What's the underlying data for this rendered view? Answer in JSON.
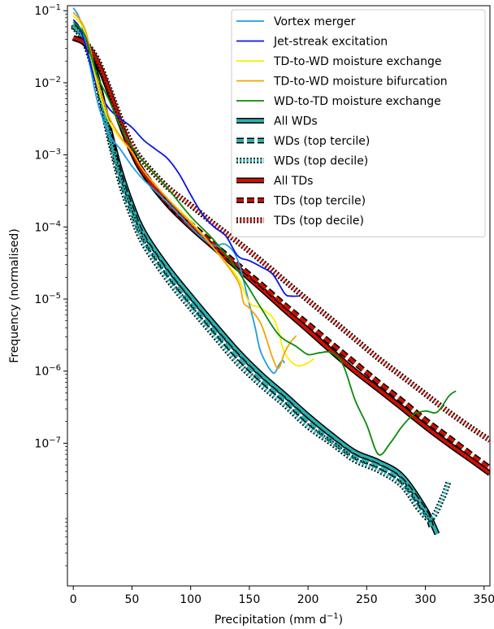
{
  "chart_data": {
    "type": "line",
    "xlabel_main": "Precipitation (mm d",
    "xlabel_sup": "−1",
    "xlabel_end": ")",
    "ylabel": "Frequency (normalised)",
    "xlim": [
      -5,
      355
    ],
    "ylim_exponent": [
      -8.98,
      -0.93
    ],
    "yscale": "log",
    "legend_position": "top-right",
    "grid": false,
    "x_ticks": [
      0,
      50,
      100,
      150,
      200,
      250,
      300,
      350
    ],
    "y_ticks": [
      {
        "base": "10",
        "exp": "−1",
        "value": 0.1
      },
      {
        "base": "10",
        "exp": "−2",
        "value": 0.01
      },
      {
        "base": "10",
        "exp": "−3",
        "value": 0.001
      },
      {
        "base": "10",
        "exp": "−4",
        "value": 0.0001
      },
      {
        "base": "10",
        "exp": "−5",
        "value": 1e-05
      },
      {
        "base": "10",
        "exp": "−6",
        "value": 1e-06
      },
      {
        "base": "10",
        "exp": "−7",
        "value": 1e-07
      }
    ],
    "series": [
      {
        "name": "All WDs",
        "color": "#2ab0b0",
        "style": "bold-solid",
        "points": [
          [
            0,
            0.065
          ],
          [
            10,
            0.04
          ],
          [
            20,
            0.012
          ],
          [
            30,
            0.0025
          ],
          [
            40,
            0.0006
          ],
          [
            50,
            0.0002
          ],
          [
            60,
            8.5e-05
          ],
          [
            80,
            2.8e-05
          ],
          [
            100,
            1.1e-05
          ],
          [
            120,
            4.5e-06
          ],
          [
            140,
            1.9e-06
          ],
          [
            160,
            9e-07
          ],
          [
            180,
            4.7e-07
          ],
          [
            200,
            2.4e-07
          ],
          [
            220,
            1.3e-07
          ],
          [
            240,
            7.5e-08
          ],
          [
            260,
            5.5e-08
          ],
          [
            280,
            3.5e-08
          ],
          [
            300,
            1.2e-08
          ],
          [
            310,
            5.5e-09
          ]
        ]
      },
      {
        "name": "WDs (top tercile)",
        "color": "#2ab0b0",
        "style": "bold-dashed",
        "points": [
          [
            0,
            0.062
          ],
          [
            10,
            0.038
          ],
          [
            20,
            0.011
          ],
          [
            30,
            0.0022
          ],
          [
            40,
            0.0005
          ],
          [
            50,
            0.00017
          ],
          [
            60,
            7e-05
          ],
          [
            80,
            2.3e-05
          ],
          [
            100,
            9e-06
          ],
          [
            120,
            3.7e-06
          ],
          [
            140,
            1.6e-06
          ],
          [
            160,
            7.6e-07
          ],
          [
            180,
            4e-07
          ],
          [
            200,
            2e-07
          ],
          [
            220,
            1.1e-07
          ],
          [
            240,
            6.5e-08
          ],
          [
            260,
            4.8e-08
          ],
          [
            280,
            3e-08
          ],
          [
            300,
            1.1e-08
          ],
          [
            305,
            7e-09
          ]
        ]
      },
      {
        "name": "WDs (top decile)",
        "color": "#2ab0b0",
        "style": "bold-dotted",
        "points": [
          [
            0,
            0.06
          ],
          [
            10,
            0.035
          ],
          [
            20,
            0.01
          ],
          [
            30,
            0.0019
          ],
          [
            40,
            0.00042
          ],
          [
            50,
            0.00014
          ],
          [
            60,
            5.8e-05
          ],
          [
            80,
            1.9e-05
          ],
          [
            100,
            7.5e-06
          ],
          [
            120,
            3.1e-06
          ],
          [
            140,
            1.3e-06
          ],
          [
            160,
            6.4e-07
          ],
          [
            180,
            3.4e-07
          ],
          [
            200,
            1.7e-07
          ],
          [
            220,
            1e-07
          ],
          [
            240,
            5.8e-08
          ],
          [
            260,
            4.2e-08
          ],
          [
            280,
            2.6e-08
          ],
          [
            295,
            1.2e-08
          ],
          [
            305,
            9e-09
          ],
          [
            315,
            1.8e-08
          ],
          [
            320,
            3e-08
          ]
        ]
      },
      {
        "name": "All TDs",
        "color": "#cc1100",
        "style": "bold-solid",
        "points": [
          [
            0,
            0.042
          ],
          [
            10,
            0.035
          ],
          [
            20,
            0.02
          ],
          [
            30,
            0.008
          ],
          [
            40,
            0.0028
          ],
          [
            50,
            0.0011
          ],
          [
            60,
            0.00055
          ],
          [
            80,
            0.00021
          ],
          [
            100,
            0.0001
          ],
          [
            120,
            5.2e-05
          ],
          [
            140,
            2.7e-05
          ],
          [
            160,
            1.4e-05
          ],
          [
            180,
            7.1e-06
          ],
          [
            200,
            3.7e-06
          ],
          [
            220,
            1.9e-06
          ],
          [
            240,
            1e-06
          ],
          [
            260,
            5.6e-07
          ],
          [
            280,
            3.1e-07
          ],
          [
            300,
            1.7e-07
          ],
          [
            320,
            9.7e-08
          ],
          [
            340,
            5.7e-08
          ],
          [
            355,
            3.8e-08
          ]
        ]
      },
      {
        "name": "TDs (top tercile)",
        "color": "#cc1100",
        "style": "bold-dashed",
        "points": [
          [
            0,
            0.042
          ],
          [
            10,
            0.035
          ],
          [
            20,
            0.02
          ],
          [
            30,
            0.008
          ],
          [
            40,
            0.0028
          ],
          [
            50,
            0.0011
          ],
          [
            60,
            0.00056
          ],
          [
            80,
            0.00022
          ],
          [
            100,
            0.00011
          ],
          [
            120,
            5.7e-05
          ],
          [
            140,
            3e-05
          ],
          [
            160,
            1.6e-05
          ],
          [
            180,
            8.3e-06
          ],
          [
            200,
            4.5e-06
          ],
          [
            220,
            2.4e-06
          ],
          [
            240,
            1.3e-06
          ],
          [
            260,
            7e-07
          ],
          [
            280,
            3.9e-07
          ],
          [
            300,
            2.1e-07
          ],
          [
            320,
            1.2e-07
          ],
          [
            340,
            6.8e-08
          ],
          [
            355,
            4.5e-08
          ]
        ]
      },
      {
        "name": "TDs (top decile)",
        "color": "#cc1100",
        "style": "bold-dotted",
        "points": [
          [
            0,
            0.042
          ],
          [
            10,
            0.036
          ],
          [
            20,
            0.022
          ],
          [
            30,
            0.009
          ],
          [
            40,
            0.0033
          ],
          [
            50,
            0.0014
          ],
          [
            60,
            0.0008
          ],
          [
            80,
            0.00036
          ],
          [
            100,
            0.0002
          ],
          [
            120,
            0.00011
          ],
          [
            140,
            6.2e-05
          ],
          [
            160,
            3.4e-05
          ],
          [
            180,
            1.8e-05
          ],
          [
            200,
            9.6e-06
          ],
          [
            220,
            5.2e-06
          ],
          [
            240,
            2.8e-06
          ],
          [
            260,
            1.5e-06
          ],
          [
            280,
            8.5e-07
          ],
          [
            300,
            4.8e-07
          ],
          [
            320,
            2.7e-07
          ],
          [
            340,
            1.6e-07
          ],
          [
            355,
            1.1e-07
          ]
        ]
      },
      {
        "name": "Vortex merger",
        "color": "#1f9be8",
        "style": "thin",
        "points": [
          [
            0,
            0.11
          ],
          [
            5,
            0.08
          ],
          [
            10,
            0.04
          ],
          [
            20,
            0.006
          ],
          [
            30,
            0.002
          ],
          [
            40,
            0.0012
          ],
          [
            50,
            0.0007
          ],
          [
            60,
            0.00045
          ],
          [
            80,
            0.00022
          ],
          [
            100,
            0.0001
          ],
          [
            110,
            7e-05
          ],
          [
            120,
            5.5e-05
          ],
          [
            130,
            5.7e-05
          ],
          [
            140,
            3.5e-05
          ],
          [
            150,
            8.5e-06
          ],
          [
            155,
            4e-06
          ],
          [
            160,
            1.8e-06
          ],
          [
            170,
            9.5e-07
          ],
          [
            175,
            1.2e-06
          ],
          [
            178,
            1.4e-06
          ],
          [
            180,
            1.3e-06
          ]
        ]
      },
      {
        "name": "Jet-streak excitation",
        "color": "#0b15e6",
        "style": "thin",
        "points": [
          [
            0,
            0.075
          ],
          [
            5,
            0.06
          ],
          [
            10,
            0.035
          ],
          [
            20,
            0.009
          ],
          [
            30,
            0.0045
          ],
          [
            40,
            0.0032
          ],
          [
            50,
            0.0024
          ],
          [
            60,
            0.0016
          ],
          [
            70,
            0.0012
          ],
          [
            80,
            0.0009
          ],
          [
            90,
            0.00055
          ],
          [
            100,
            0.00028
          ],
          [
            110,
            0.00015
          ],
          [
            120,
            0.0001
          ],
          [
            130,
            7.5e-05
          ],
          [
            140,
            4e-05
          ],
          [
            150,
            3.4e-05
          ],
          [
            160,
            2.8e-05
          ],
          [
            170,
            2.2e-05
          ],
          [
            180,
            1.2e-05
          ],
          [
            185,
            1.1e-05
          ],
          [
            192,
            1.1e-05
          ]
        ]
      },
      {
        "name": "TD-to-WD moisture exchange",
        "color": "#f7ef00",
        "style": "thin",
        "points": [
          [
            0,
            0.085
          ],
          [
            10,
            0.05
          ],
          [
            20,
            0.01
          ],
          [
            30,
            0.003
          ],
          [
            40,
            0.0017
          ],
          [
            50,
            0.0011
          ],
          [
            60,
            0.0006
          ],
          [
            80,
            0.00025
          ],
          [
            100,
            0.00012
          ],
          [
            120,
            5e-05
          ],
          [
            140,
            2e-05
          ],
          [
            150,
            9e-06
          ],
          [
            160,
            7.5e-06
          ],
          [
            170,
            5.5e-06
          ],
          [
            175,
            3.5e-06
          ],
          [
            180,
            1.8e-06
          ],
          [
            190,
            1.2e-06
          ],
          [
            200,
            1.3e-06
          ],
          [
            205,
            1.5e-06
          ]
        ]
      },
      {
        "name": "TD-to-WD moisture bifurcation",
        "color": "#f5a300",
        "style": "thin",
        "points": [
          [
            0,
            0.095
          ],
          [
            10,
            0.055
          ],
          [
            20,
            0.012
          ],
          [
            30,
            0.0035
          ],
          [
            40,
            0.0018
          ],
          [
            50,
            0.0011
          ],
          [
            60,
            0.0006
          ],
          [
            80,
            0.00025
          ],
          [
            100,
            0.000115
          ],
          [
            120,
            5e-05
          ],
          [
            140,
            1.8e-05
          ],
          [
            145,
            9e-06
          ],
          [
            150,
            7.5e-06
          ],
          [
            160,
            4.5e-06
          ],
          [
            170,
            1.5e-06
          ],
          [
            175,
            1.1e-06
          ],
          [
            180,
            1.8e-06
          ],
          [
            185,
            2.5e-06
          ],
          [
            190,
            3.1e-06
          ]
        ]
      },
      {
        "name": "WD-to-TD moisture exchange",
        "color": "#0a8a0a",
        "style": "thin",
        "points": [
          [
            0,
            0.07
          ],
          [
            10,
            0.045
          ],
          [
            20,
            0.013
          ],
          [
            30,
            0.006
          ],
          [
            40,
            0.0025
          ],
          [
            50,
            0.0013
          ],
          [
            60,
            0.0008
          ],
          [
            80,
            0.00035
          ],
          [
            100,
            0.00014
          ],
          [
            120,
            6.5e-05
          ],
          [
            140,
            2.5e-05
          ],
          [
            160,
            7.5e-06
          ],
          [
            175,
            3.2e-06
          ],
          [
            190,
            2.2e-06
          ],
          [
            200,
            1.7e-06
          ],
          [
            210,
            1.8e-06
          ],
          [
            220,
            1.8e-06
          ],
          [
            230,
            1.2e-06
          ],
          [
            240,
            4e-07
          ],
          [
            250,
            1.8e-07
          ],
          [
            260,
            7e-08
          ],
          [
            270,
            1e-07
          ],
          [
            280,
            1.7e-07
          ],
          [
            290,
            2.5e-07
          ],
          [
            300,
            2.8e-07
          ],
          [
            310,
            2.7e-07
          ],
          [
            320,
            4.5e-07
          ],
          [
            326,
            5.3e-07
          ]
        ]
      }
    ],
    "legend_entries": [
      {
        "label": "Vortex merger",
        "series": 6
      },
      {
        "label": "Jet-streak excitation",
        "series": 7
      },
      {
        "label": "TD-to-WD moisture exchange",
        "series": 8
      },
      {
        "label": "TD-to-WD moisture bifurcation",
        "series": 9
      },
      {
        "label": "WD-to-TD moisture exchange",
        "series": 10
      },
      {
        "label": "All WDs",
        "series": 0
      },
      {
        "label": "WDs (top tercile)",
        "series": 1
      },
      {
        "label": "WDs (top decile)",
        "series": 2
      },
      {
        "label": "All TDs",
        "series": 3
      },
      {
        "label": "TDs (top tercile)",
        "series": 4
      },
      {
        "label": "TDs (top decile)",
        "series": 5
      }
    ]
  }
}
